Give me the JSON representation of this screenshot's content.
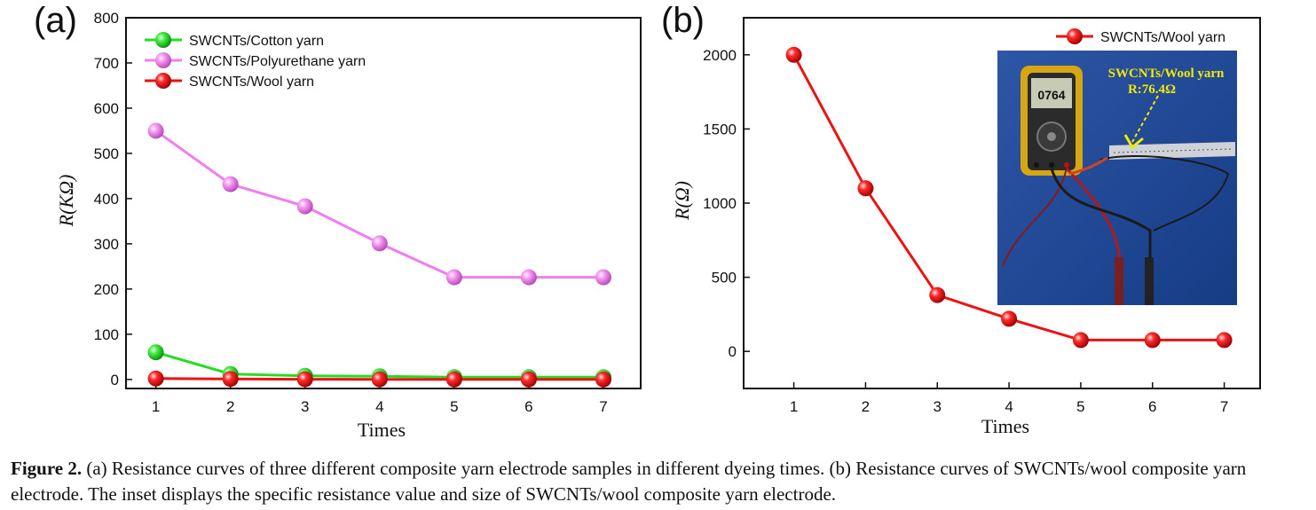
{
  "panel_labels": {
    "a": "(a)",
    "b": "(b)"
  },
  "inset": {
    "annotation_line1": "SWCNTs/Wool yarn",
    "annotation_line2": "R:76.4Ω",
    "meter_display": "0764"
  },
  "caption": {
    "label": "Figure 2.",
    "text": " (a) Resistance curves of three different composite yarn electrode samples in different dyeing times. (b) Resistance curves of SWCNTs/wool composite yarn electrode. The inset displays the specific resistance value and size of SWCNTs/wool composite yarn electrode."
  },
  "colors": {
    "cotton": "#22dd22",
    "polyurethane": "#f07ef0",
    "wool": "#ee1111"
  },
  "chart_data": [
    {
      "type": "line",
      "xlabel": "Times",
      "ylabel": "R(KΩ)",
      "x": [
        1,
        2,
        3,
        4,
        5,
        6,
        7
      ],
      "xlim": [
        0.6,
        7.5
      ],
      "ylim": [
        -20,
        800
      ],
      "yticks": [
        0,
        100,
        200,
        300,
        400,
        500,
        600,
        700,
        800
      ],
      "legend_position": "top-left",
      "series": [
        {
          "name": "SWCNTs/Cotton yarn",
          "color": "#22dd22",
          "values": [
            60,
            12,
            8,
            7,
            5,
            5,
            5
          ]
        },
        {
          "name": "SWCNTs/Polyurethane yarn",
          "color": "#f07ef0",
          "values": [
            550,
            432,
            383,
            301,
            226,
            226,
            226
          ]
        },
        {
          "name": "SWCNTs/Wool yarn",
          "color": "#ee1111",
          "values": [
            2,
            1.1,
            0.38,
            0.22,
            0.076,
            0.076,
            0.076
          ]
        }
      ]
    },
    {
      "type": "line",
      "xlabel": "Times",
      "ylabel": "R(Ω)",
      "x": [
        1,
        2,
        3,
        4,
        5,
        6,
        7
      ],
      "xlim": [
        0.3,
        7.5
      ],
      "ylim": [
        -250,
        2250
      ],
      "yticks": [
        0,
        500,
        1000,
        1500,
        2000
      ],
      "legend_position": "top-right",
      "series": [
        {
          "name": "SWCNTs/Wool yarn",
          "color": "#ee1111",
          "values": [
            2000,
            1100,
            380,
            220,
            76.4,
            76.4,
            76.4
          ]
        }
      ]
    }
  ]
}
